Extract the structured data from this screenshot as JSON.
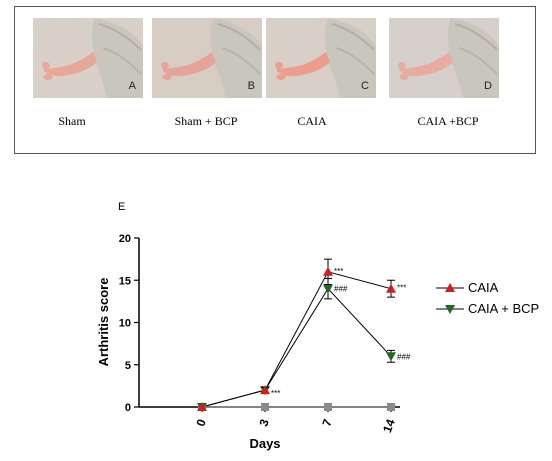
{
  "photos": [
    {
      "letter": "A",
      "caption": "Sham",
      "skin": "#e7a89a",
      "bg": "#d9d0c8"
    },
    {
      "letter": "B",
      "caption": "Sham + BCP",
      "skin": "#e6a397",
      "bg": "#d7cdc3"
    },
    {
      "letter": "C",
      "caption": "CAIA",
      "skin": "#ee9c8e",
      "bg": "#d8cfc7"
    },
    {
      "letter": "D",
      "caption": "CAIA +BCP",
      "skin": "#e8ab9f",
      "bg": "#d6d0cc"
    }
  ],
  "panel_label": "E",
  "chart_data": {
    "type": "line",
    "xlabel": "Days",
    "ylabel": "Arthritis score",
    "categories": [
      "0",
      "3",
      "7",
      "14"
    ],
    "ylim": [
      0,
      20
    ],
    "yticks": [
      "0",
      "5",
      "10",
      "15",
      "20"
    ],
    "grid": false,
    "legend_position": "right",
    "series": [
      {
        "name": "CAIA",
        "marker": "triangle-up",
        "color": "#cc1f1f",
        "values": [
          0,
          2,
          16,
          14
        ],
        "errors": [
          0,
          0.3,
          1.5,
          1.0
        ],
        "annotations": [
          "",
          "***",
          "***",
          "***"
        ]
      },
      {
        "name": "CAIA + BCP",
        "marker": "triangle-down",
        "color": "#1e6b1e",
        "values": [
          0,
          2,
          14,
          6
        ],
        "errors": [
          0,
          0.3,
          1.2,
          0.7
        ],
        "annotations": [
          "",
          "",
          "###",
          "###"
        ]
      },
      {
        "name": "",
        "marker": "square",
        "color": "#8a8a8a",
        "values": [
          0,
          0,
          0,
          0
        ],
        "errors": [
          0,
          0,
          0,
          0
        ],
        "annotations": [
          "",
          "",
          "",
          ""
        ]
      }
    ]
  }
}
